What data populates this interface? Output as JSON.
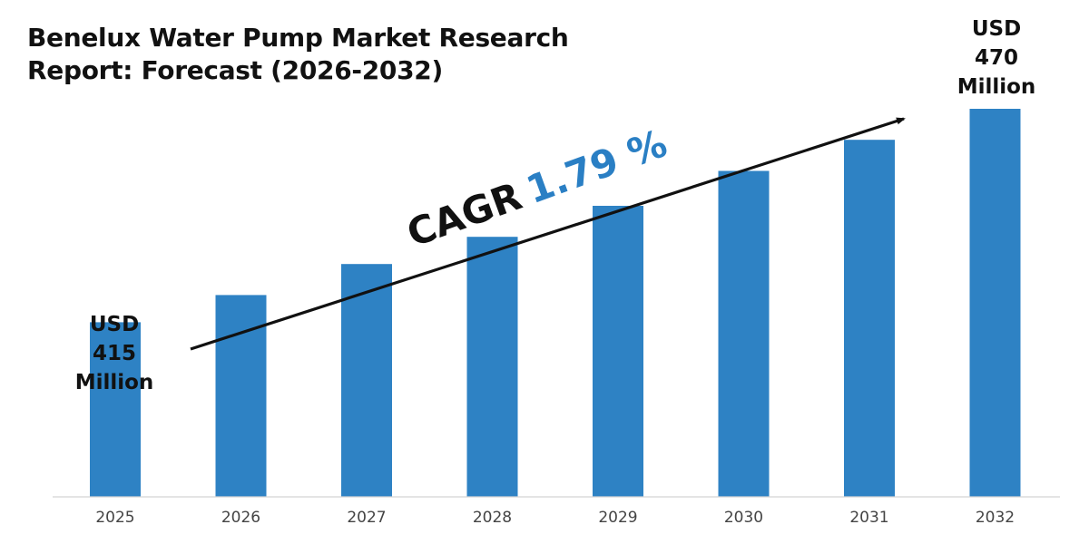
{
  "colors": {
    "bar": "#2e82c4",
    "axis": "#d4d4d4",
    "tick_label": "#444444",
    "arrow": "#111111",
    "cagr_value": "#2a7fc4"
  },
  "chart_data": {
    "type": "bar",
    "title": "Benelux Water Pump Market Research Report: Forecast (2026-2032)",
    "title_lines": [
      "Benelux Water Pump Market Research",
      "Report: Forecast (2026-2032)"
    ],
    "categories": [
      "2025",
      "2026",
      "2027",
      "2028",
      "2029",
      "2030",
      "2031",
      "2032"
    ],
    "values": [
      415,
      422,
      430,
      437,
      445,
      454,
      462,
      470
    ],
    "ylim": [
      370,
      470
    ],
    "xlabel": "",
    "ylabel": "",
    "grid": false,
    "annotations": {
      "start": {
        "lines": [
          "USD",
          "415",
          "Million"
        ]
      },
      "end": {
        "lines": [
          "USD",
          "470",
          "Million"
        ]
      },
      "cagr_label": "CAGR",
      "cagr_value": "1.79 %"
    }
  }
}
